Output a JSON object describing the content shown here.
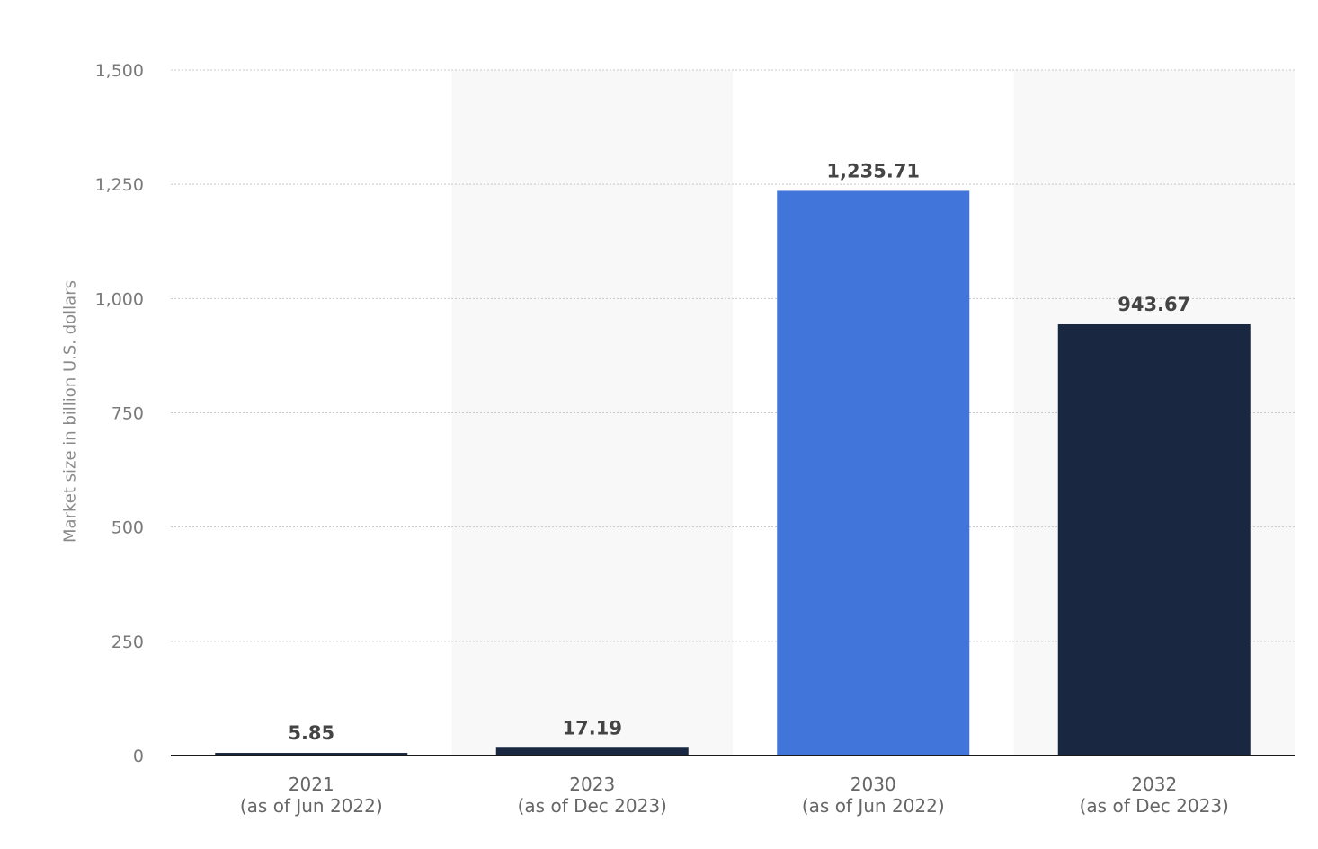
{
  "chart_data": {
    "type": "bar",
    "categories": [
      {
        "year": "2021",
        "note": "(as of Jun 2022)"
      },
      {
        "year": "2023",
        "note": "(as of Dec 2023)"
      },
      {
        "year": "2030",
        "note": "(as of Jun 2022)"
      },
      {
        "year": "2032",
        "note": "(as of Dec 2023)"
      }
    ],
    "values": [
      5.85,
      17.19,
      1235.71,
      943.67
    ],
    "value_labels": [
      "5.85",
      "17.19",
      "1,235.71",
      "943.67"
    ],
    "bar_colors": [
      "#1a2740",
      "#1a2740",
      "#4175d9",
      "#1a2740"
    ],
    "title": "",
    "xlabel": "",
    "ylabel": "Market size in billion U.S. dollars",
    "ylim": [
      0,
      1500
    ],
    "yticks": [
      0,
      250,
      500,
      750,
      1000,
      1250,
      1500
    ],
    "ytick_labels": [
      "0",
      "250",
      "500",
      "750",
      "1,000",
      "1,250",
      "1,500"
    ],
    "grid": true,
    "legend": "none"
  },
  "colors": {
    "axis_line": "#1a1a1a",
    "grid_line": "#c8c8c8",
    "band_shade": "#f8f8f9"
  }
}
